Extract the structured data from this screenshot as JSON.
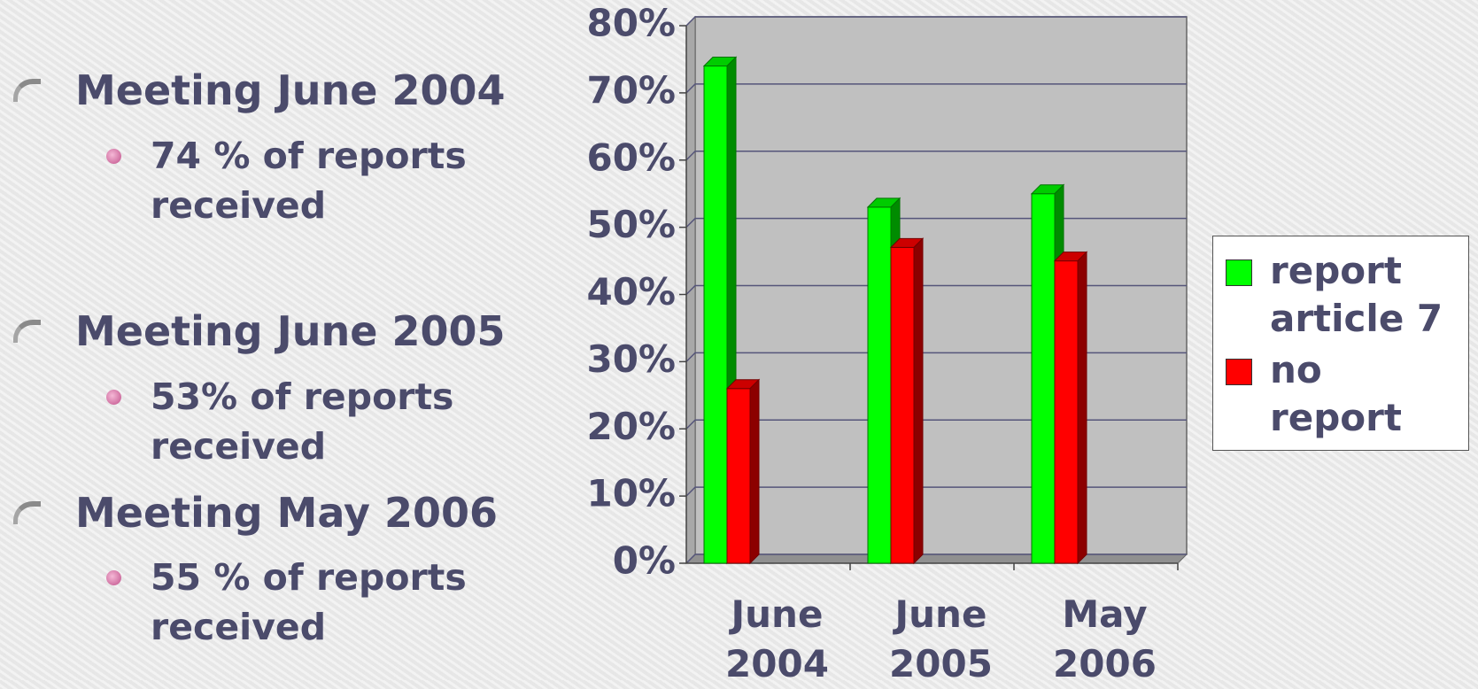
{
  "bullets": [
    {
      "text": "Meeting June 2004",
      "sub": "74 % of reports received"
    },
    {
      "text": "Meeting June 2005",
      "sub": "53% of reports received"
    },
    {
      "text": "Meeting May 2006",
      "sub": "55 % of reports received"
    }
  ],
  "chart_data": {
    "type": "bar",
    "categories": [
      "June 2004",
      "June 2005",
      "May 2006"
    ],
    "series": [
      {
        "name": "report article 7",
        "color": "#00ff00",
        "values": [
          74,
          53,
          55
        ]
      },
      {
        "name": "no report",
        "color": "#ff0000",
        "values": [
          26,
          47,
          45
        ]
      }
    ],
    "ylim": [
      0,
      80
    ],
    "yticks": [
      {
        "value": 0,
        "label": "0%"
      },
      {
        "value": 10,
        "label": "10%"
      },
      {
        "value": 20,
        "label": "20%"
      },
      {
        "value": 30,
        "label": "30%"
      },
      {
        "value": 40,
        "label": "40%"
      },
      {
        "value": 50,
        "label": "50%"
      },
      {
        "value": 60,
        "label": "60%"
      },
      {
        "value": 70,
        "label": "70%"
      },
      {
        "value": 80,
        "label": "80%"
      }
    ],
    "grid": true,
    "legend": "right"
  }
}
